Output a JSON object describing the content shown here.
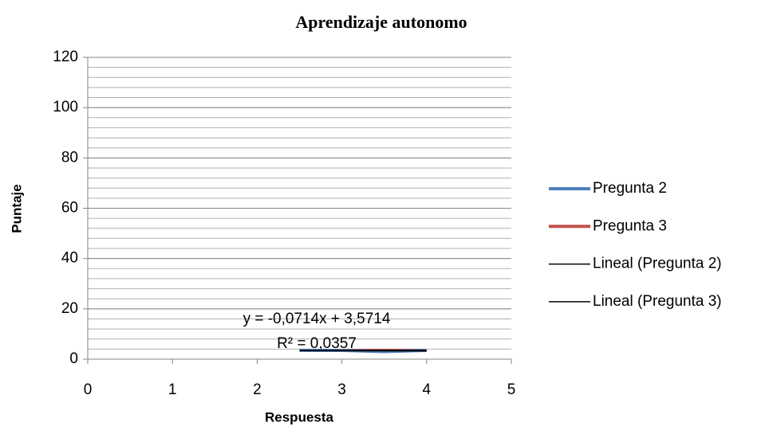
{
  "chart_data": {
    "type": "line",
    "title": "Aprendizaje autonomo",
    "xlabel": "Respuesta",
    "ylabel": "Puntaje",
    "xlim": [
      0,
      5
    ],
    "xticks": [
      0,
      1,
      2,
      3,
      4,
      5
    ],
    "ylim": [
      0,
      120
    ],
    "yticks": [
      0,
      20,
      40,
      60,
      80,
      100,
      120
    ],
    "grid": true,
    "minor_grid_step": 4,
    "legend": "right",
    "series": [
      {
        "name": "Pregunta 3",
        "color": "#c0504d",
        "width": 4,
        "x": [
          2.5,
          3,
          3.5,
          4
        ],
        "values": [
          3.5,
          3.5,
          3.5,
          3.5
        ]
      },
      {
        "name": "Pregunta 2",
        "color": "#4f81bd",
        "width": 4,
        "x": [
          2.5,
          3,
          3.5,
          4
        ],
        "values": [
          3.5,
          3.5,
          3,
          3.5
        ]
      },
      {
        "name": "Lineal (Pregunta 2)",
        "color": "#000000",
        "width": 1.5,
        "x": [
          2.5,
          4
        ],
        "values": [
          3.393,
          3.286
        ]
      },
      {
        "name": "Lineal (Pregunta 3)",
        "color": "#000000",
        "width": 1.5,
        "x": [
          2.5,
          4
        ],
        "values": [
          3.5,
          3.5
        ]
      }
    ],
    "legend_order": [
      1,
      0,
      2,
      3
    ],
    "annotations": [
      "y = -0,0714x + 3,5714",
      "R² = 0,0357"
    ]
  }
}
